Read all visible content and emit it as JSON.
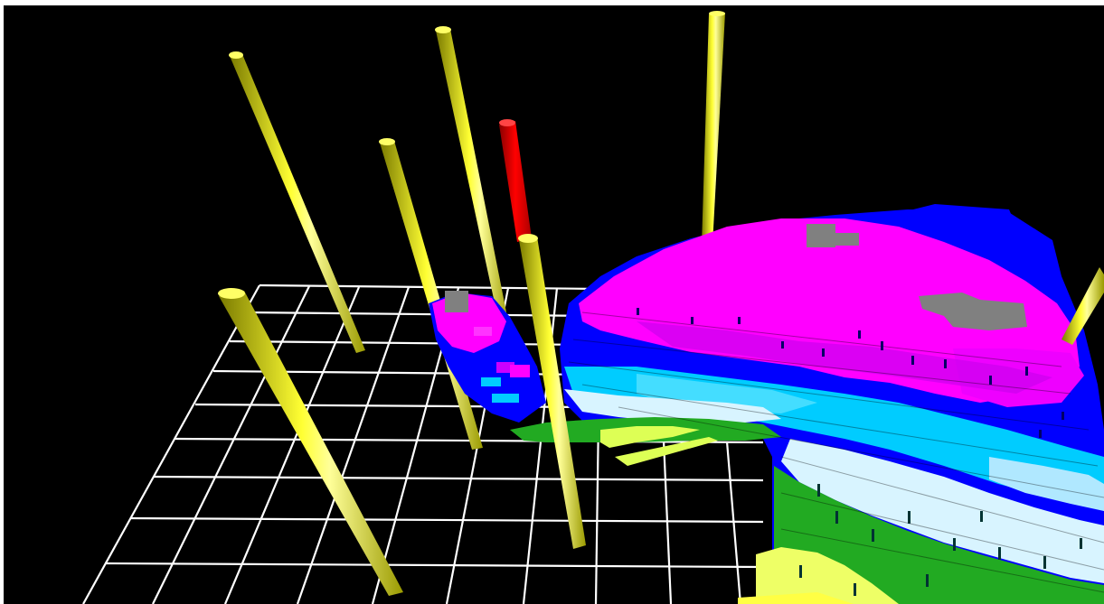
{
  "scene": {
    "colors": {
      "background": "#000000",
      "grid": "#ffffff",
      "well": "#ffff00",
      "well_shadow": "#8a8a00",
      "well_highlight": "#ffffcc",
      "well_selected": "#ff0000",
      "zone_magenta": "#ff00ff",
      "zone_blue": "#0000ff",
      "zone_cyan": "#00ccff",
      "zone_pale": "#d8f4ff",
      "zone_green": "#22aa22",
      "zone_yellowgreen": "#ddff55",
      "zone_gray": "#808080",
      "zone_purple": "#9900cc"
    },
    "wells": {
      "count": 9,
      "selected_count": 1
    }
  }
}
